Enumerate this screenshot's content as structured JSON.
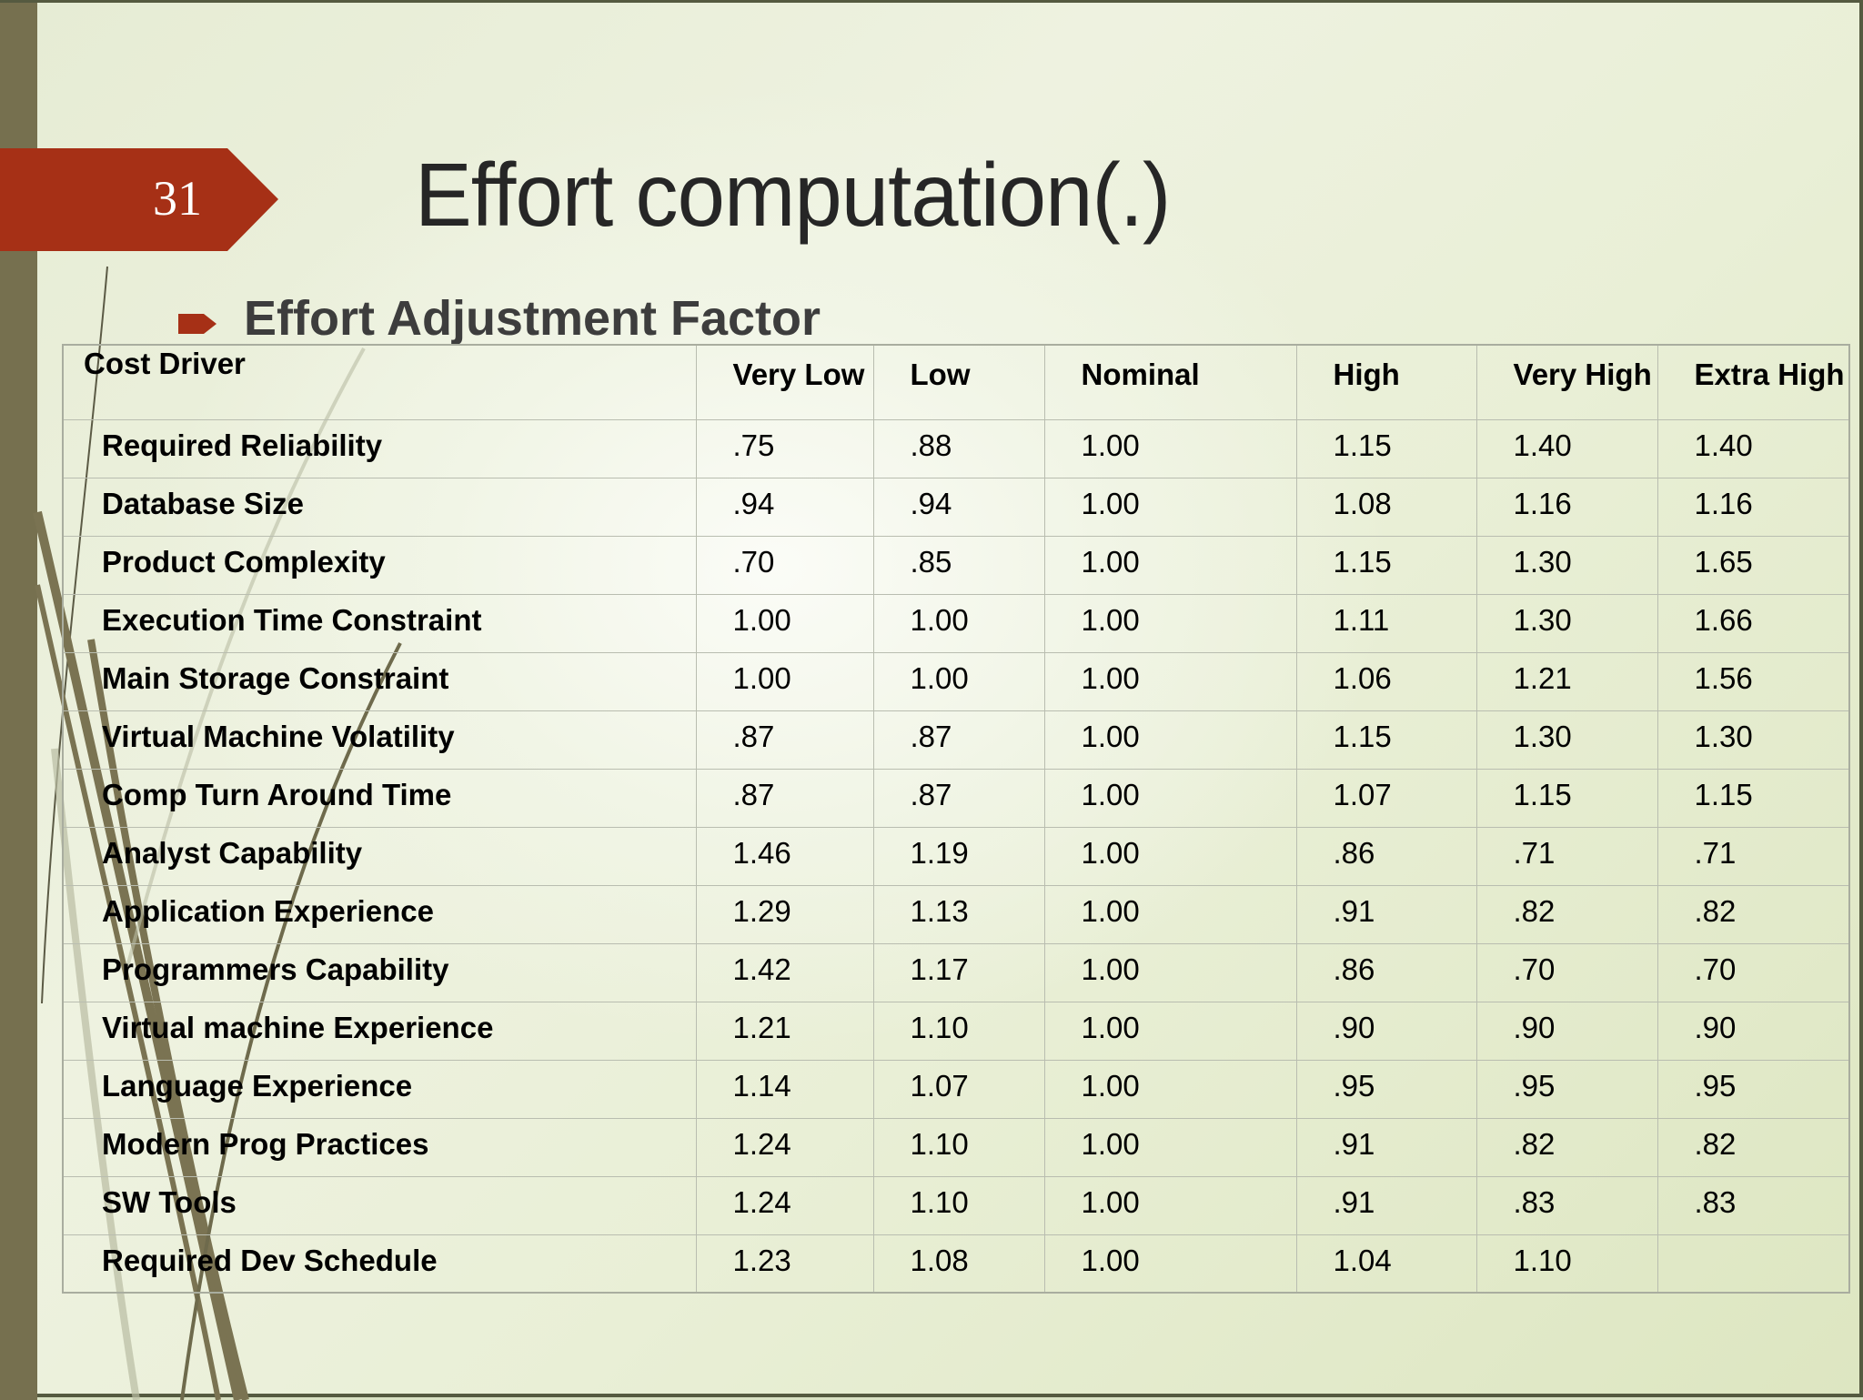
{
  "slide": {
    "number": "31",
    "title": "Effort computation(.)",
    "bullet": {
      "icon": "arrow-bullet-icon",
      "text": "Effort Adjustment Factor"
    },
    "colors": {
      "accent": "#a63016",
      "left_bar": "#76704f",
      "title_text": "#262626",
      "background": "#e6ecd4"
    }
  },
  "table": {
    "headers": [
      "Cost Driver",
      "Very Low",
      "Low",
      "Nominal",
      "High",
      "Very High",
      "Extra High"
    ],
    "rows": [
      [
        "Required Reliability",
        ".75",
        ".88",
        "1.00",
        "1.15",
        "1.40",
        "1.40"
      ],
      [
        "Database Size",
        ".94",
        ".94",
        "1.00",
        "1.08",
        "1.16",
        "1.16"
      ],
      [
        "Product Complexity",
        ".70",
        ".85",
        "1.00",
        "1.15",
        "1.30",
        "1.65"
      ],
      [
        "Execution Time Constraint",
        "1.00",
        "1.00",
        "1.00",
        "1.11",
        "1.30",
        "1.66"
      ],
      [
        "Main Storage Constraint",
        "1.00",
        "1.00",
        "1.00",
        "1.06",
        "1.21",
        "1.56"
      ],
      [
        "Virtual Machine Volatility",
        ".87",
        ".87",
        "1.00",
        "1.15",
        "1.30",
        "1.30"
      ],
      [
        "Comp Turn Around Time",
        ".87",
        ".87",
        "1.00",
        "1.07",
        "1.15",
        "1.15"
      ],
      [
        "Analyst Capability",
        "1.46",
        "1.19",
        "1.00",
        ".86",
        ".71",
        ".71"
      ],
      [
        "Application Experience",
        "1.29",
        "1.13",
        "1.00",
        ".91",
        ".82",
        ".82"
      ],
      [
        "Programmers Capability",
        "1.42",
        "1.17",
        "1.00",
        ".86",
        ".70",
        ".70"
      ],
      [
        "Virtual machine Experience",
        "1.21",
        "1.10",
        "1.00",
        ".90",
        ".90",
        ".90"
      ],
      [
        "Language Experience",
        "1.14",
        "1.07",
        "1.00",
        ".95",
        ".95",
        ".95"
      ],
      [
        "Modern Prog Practices",
        "1.24",
        "1.10",
        "1.00",
        ".91",
        ".82",
        ".82"
      ],
      [
        "SW Tools",
        "1.24",
        "1.10",
        "1.00",
        ".91",
        ".83",
        ".83"
      ],
      [
        "Required Dev Schedule",
        "1.23",
        "1.08",
        "1.00",
        "1.04",
        "1.10",
        ""
      ]
    ]
  }
}
